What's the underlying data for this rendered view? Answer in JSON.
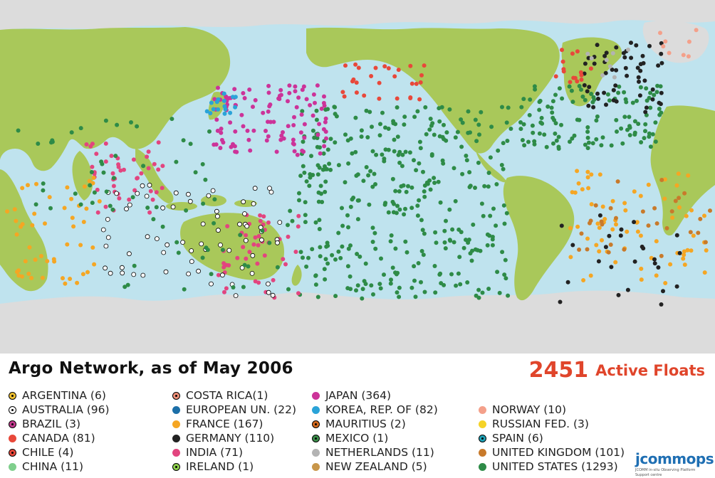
{
  "title": "Argo Network, as of May 2006",
  "active_count": "2451",
  "active_label": "Active Floats",
  "colors": {
    "ocean": "#bfe3ee",
    "land": "#a9c85a",
    "ice": "#dcdcdc",
    "accent_red": "#e0452b"
  },
  "legend": [
    {
      "label": "ARGENTINA (6)",
      "color": "#f1c232",
      "ringed": true
    },
    {
      "label": "AUSTRALIA (96)",
      "color": "#ffffff",
      "ringed": true
    },
    {
      "label": "BRAZIL (3)",
      "color": "#c33b8f",
      "ringed": true
    },
    {
      "label": "CANADA (81)",
      "color": "#e8483a",
      "ringed": false
    },
    {
      "label": "CHILE (4)",
      "color": "#e8483a",
      "ringed": true
    },
    {
      "label": "CHINA (11)",
      "color": "#7fcf8c",
      "ringed": false
    },
    {
      "label": "COSTA RICA(1)",
      "color": "#f0917a",
      "ringed": true
    },
    {
      "label": "EUROPEAN UN. (22)",
      "color": "#1c6fa8",
      "ringed": false
    },
    {
      "label": "FRANCE (167)",
      "color": "#f5a623",
      "ringed": false
    },
    {
      "label": "GERMANY (110)",
      "color": "#222222",
      "ringed": false
    },
    {
      "label": "INDIA (71)",
      "color": "#e2457f",
      "ringed": false
    },
    {
      "label": "IRELAND (1)",
      "color": "#8fd14f",
      "ringed": true
    },
    {
      "label": "JAPAN (364)",
      "color": "#cc3399",
      "ringed": false
    },
    {
      "label": "KOREA, REP. OF (82)",
      "color": "#2aa3d8",
      "ringed": false
    },
    {
      "label": "MAURITIUS (2)",
      "color": "#d2691e",
      "ringed": true
    },
    {
      "label": "MEXICO (1)",
      "color": "#3c8d4a",
      "ringed": true
    },
    {
      "label": "NETHERLANDS (11)",
      "color": "#b3b3b3",
      "ringed": false
    },
    {
      "label": "NEW ZEALAND (5)",
      "color": "#c8964a",
      "ringed": false
    },
    {
      "label": "NORWAY (10)",
      "color": "#f4a08a",
      "ringed": false
    },
    {
      "label": "RUSSIAN FED. (3)",
      "color": "#f5d327",
      "ringed": false
    },
    {
      "label": "SPAIN (6)",
      "color": "#1fa3b8",
      "ringed": true
    },
    {
      "label": "UNITED KINGDOM (101)",
      "color": "#c87a2b",
      "ringed": false
    },
    {
      "label": "UNITED STATES (1293)",
      "color": "#2e8b47",
      "ringed": false
    }
  ],
  "logo": {
    "text": "jcommops",
    "caption": "JCOMM in-situ Observing Platform Support centre"
  }
}
